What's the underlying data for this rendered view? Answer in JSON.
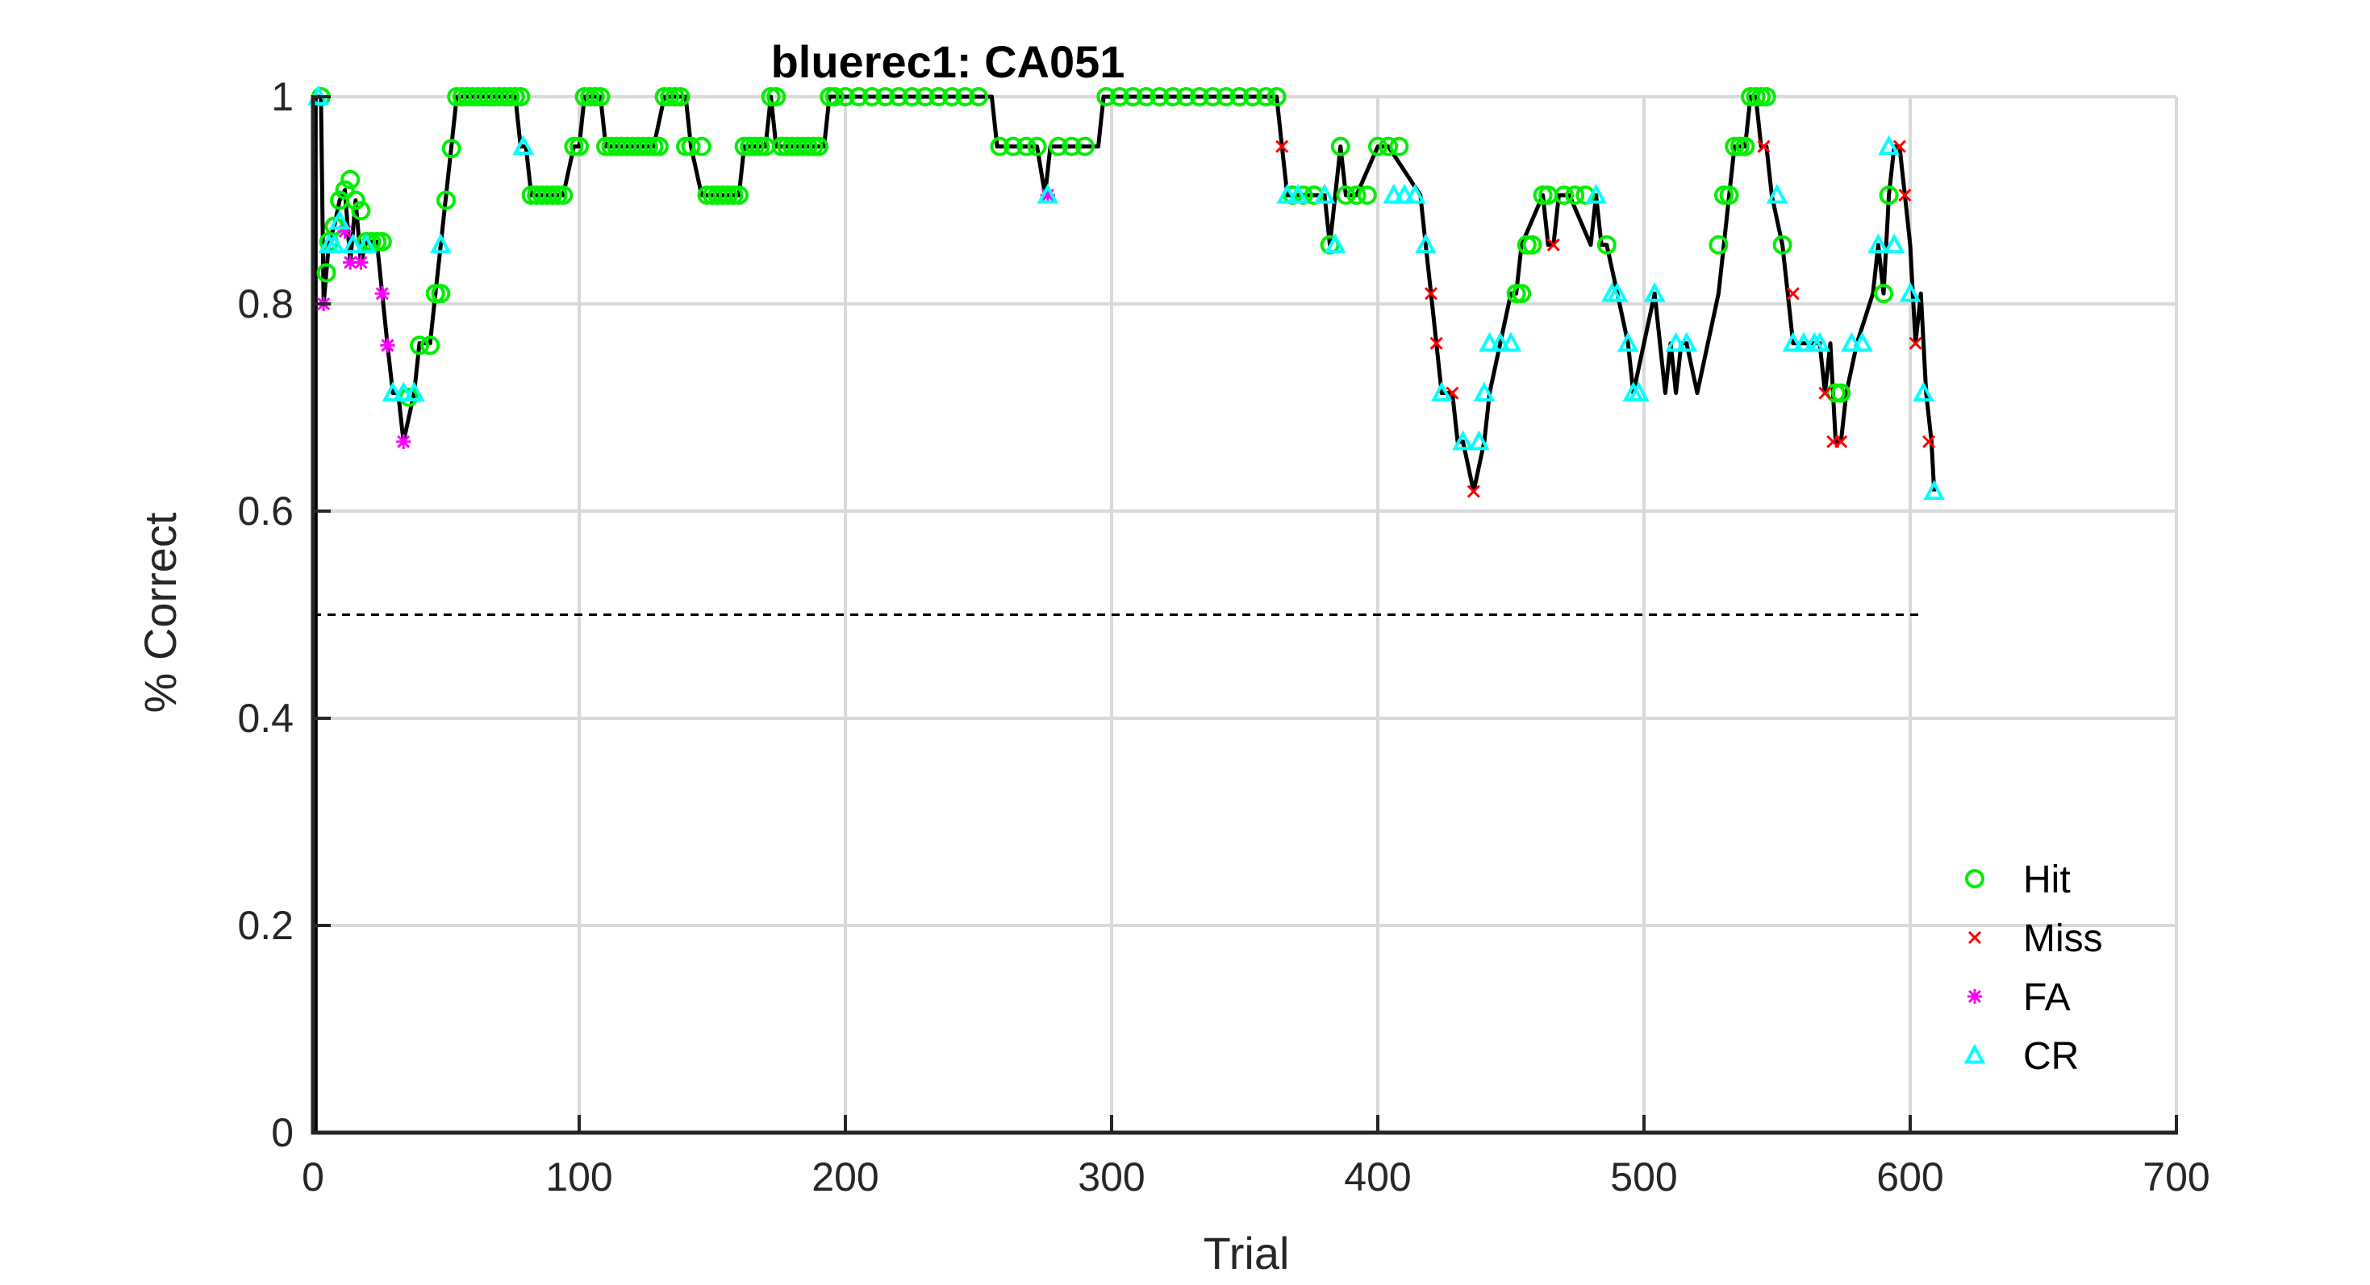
{
  "chart_data": {
    "type": "line",
    "title": "bluerec1: CA051",
    "xlabel": "Trial",
    "ylabel": "% Correct",
    "xlim": [
      0,
      700
    ],
    "ylim": [
      0,
      1
    ],
    "xticks": [
      0,
      100,
      200,
      300,
      400,
      500,
      600,
      700
    ],
    "yticks": [
      0,
      0.2,
      0.4,
      0.6,
      0.8,
      1
    ],
    "xtick_labels": [
      "0",
      "100",
      "200",
      "300",
      "400",
      "500",
      "600",
      "700"
    ],
    "ytick_labels": [
      "0",
      "0.2",
      "0.4",
      "0.6",
      "0.8",
      "1"
    ],
    "grid": true,
    "legend_position": "bottom-right",
    "chance_line": {
      "y": 0.5,
      "x": [
        0,
        605
      ],
      "style": "dashed"
    },
    "line_color": "#000000",
    "series_styles": {
      "Hit": {
        "color": "#00ee00",
        "marker": "circle"
      },
      "Miss": {
        "color": "#ff0000",
        "marker": "x"
      },
      "FA": {
        "color": "#ff00ff",
        "marker": "asterisk"
      },
      "CR": {
        "color": "#00ffff",
        "marker": "triangle"
      }
    },
    "legend": [
      {
        "label": "Hit",
        "marker": "circle",
        "color": "#00ee00"
      },
      {
        "label": "Miss",
        "marker": "x",
        "color": "#ff0000"
      },
      {
        "label": "FA",
        "marker": "asterisk",
        "color": "#ff00ff"
      },
      {
        "label": "CR",
        "marker": "triangle",
        "color": "#00ffff"
      }
    ],
    "series": [
      {
        "name": "Hit",
        "x": [
          3,
          5,
          6,
          8,
          10,
          12,
          14,
          16,
          18,
          20,
          22,
          24,
          26,
          36,
          40,
          44,
          46,
          48,
          50,
          52,
          54,
          56,
          58,
          60,
          62,
          64,
          66,
          68,
          70,
          72,
          74,
          76,
          78,
          82,
          84,
          86,
          88,
          90,
          92,
          94,
          98,
          100,
          102,
          104,
          106,
          108,
          110,
          112,
          114,
          116,
          118,
          120,
          122,
          124,
          126,
          128,
          130,
          132,
          134,
          136,
          138,
          140,
          142,
          146,
          148,
          150,
          152,
          154,
          156,
          158,
          160,
          162,
          164,
          166,
          168,
          170,
          172,
          174,
          176,
          178,
          180,
          182,
          184,
          186,
          188,
          190,
          194,
          196,
          200,
          205,
          210,
          215,
          220,
          225,
          230,
          235,
          240,
          245,
          250,
          258,
          263,
          268,
          272,
          280,
          285,
          290,
          298,
          303,
          308,
          313,
          318,
          323,
          328,
          333,
          338,
          343,
          348,
          353,
          358,
          362,
          368,
          372,
          376,
          382,
          386,
          388,
          392,
          396,
          400,
          404,
          408,
          452,
          454,
          456,
          458,
          462,
          464,
          470,
          474,
          478,
          486,
          528,
          530,
          532,
          534,
          536,
          538,
          540,
          542,
          544,
          546,
          552,
          572,
          574,
          590,
          592
        ],
        "y": [
          1,
          0.83,
          0.86,
          0.875,
          0.9,
          0.91,
          0.92,
          0.9,
          0.89,
          0.86,
          0.86,
          0.86,
          0.86,
          0.71,
          0.76,
          0.76,
          0.81,
          0.81,
          0.9,
          0.95,
          1,
          1,
          1,
          1,
          1,
          1,
          1,
          1,
          1,
          1,
          1,
          1,
          1,
          0.905,
          0.905,
          0.905,
          0.905,
          0.905,
          0.905,
          0.905,
          0.952,
          0.952,
          1,
          1,
          1,
          1,
          0.952,
          0.952,
          0.952,
          0.952,
          0.952,
          0.952,
          0.952,
          0.952,
          0.952,
          0.952,
          0.952,
          1,
          1,
          1,
          1,
          0.952,
          0.952,
          0.952,
          0.905,
          0.905,
          0.905,
          0.905,
          0.905,
          0.905,
          0.905,
          0.952,
          0.952,
          0.952,
          0.952,
          0.952,
          1,
          1,
          0.952,
          0.952,
          0.952,
          0.952,
          0.952,
          0.952,
          0.952,
          0.952,
          1,
          1,
          1,
          1,
          1,
          1,
          1,
          1,
          1,
          1,
          1,
          1,
          1,
          0.952,
          0.952,
          0.952,
          0.952,
          0.952,
          0.952,
          0.952,
          1,
          1,
          1,
          1,
          1,
          1,
          1,
          1,
          1,
          1,
          1,
          1,
          1,
          1,
          0.905,
          0.905,
          0.905,
          0.857,
          0.952,
          0.905,
          0.905,
          0.905,
          0.952,
          0.952,
          0.952,
          0.81,
          0.81,
          0.857,
          0.857,
          0.905,
          0.905,
          0.905,
          0.905,
          0.905,
          0.857,
          0.857,
          0.905,
          0.905,
          0.952,
          0.952,
          0.952,
          1,
          1,
          1,
          1,
          0.857,
          0.714,
          0.714,
          0.81,
          0.905
        ]
      },
      {
        "name": "Miss",
        "x": [
          364,
          420,
          422,
          428,
          436,
          466,
          545,
          556,
          568,
          571,
          574,
          596,
          598,
          602,
          607
        ],
        "y": [
          0.952,
          0.81,
          0.762,
          0.714,
          0.619,
          0.857,
          0.952,
          0.81,
          0.714,
          0.667,
          0.667,
          0.952,
          0.905,
          0.762,
          0.667
        ]
      },
      {
        "name": "FA",
        "x": [
          4,
          12,
          14,
          18,
          26,
          28,
          34,
          276
        ],
        "y": [
          0.8,
          0.87,
          0.84,
          0.84,
          0.81,
          0.76,
          0.667,
          0.905
        ]
      },
      {
        "name": "CR",
        "x": [
          2,
          6,
          8,
          10,
          15,
          20,
          30,
          34,
          38,
          48,
          79,
          276,
          366,
          370,
          380,
          384,
          406,
          410,
          414,
          418,
          424,
          432,
          438,
          440,
          442,
          446,
          450,
          482,
          488,
          490,
          494,
          496,
          498,
          504,
          512,
          516,
          550,
          556,
          560,
          564,
          566,
          578,
          582,
          588,
          592,
          594,
          600,
          605,
          609
        ],
        "y": [
          1,
          0.857,
          0.857,
          0.88,
          0.857,
          0.857,
          0.714,
          0.714,
          0.714,
          0.857,
          0.952,
          0.905,
          0.905,
          0.905,
          0.905,
          0.857,
          0.905,
          0.905,
          0.905,
          0.857,
          0.714,
          0.667,
          0.667,
          0.714,
          0.762,
          0.762,
          0.762,
          0.905,
          0.81,
          0.81,
          0.762,
          0.714,
          0.714,
          0.81,
          0.762,
          0.762,
          0.905,
          0.762,
          0.762,
          0.762,
          0.762,
          0.762,
          0.762,
          0.857,
          0.952,
          0.857,
          0.81,
          0.714,
          0.619
        ]
      }
    ],
    "performance": {
      "x": [
        1,
        3,
        4,
        5,
        6,
        8,
        10,
        12,
        14,
        16,
        18,
        20,
        24,
        26,
        28,
        30,
        32,
        34,
        38,
        40,
        44,
        46,
        48,
        50,
        52,
        54,
        60,
        70,
        76,
        78,
        80,
        82,
        94,
        98,
        100,
        102,
        108,
        110,
        128,
        132,
        140,
        142,
        146,
        160,
        162,
        170,
        172,
        174,
        176,
        192,
        194,
        255,
        257,
        272,
        275,
        277,
        280,
        295,
        297,
        362,
        364,
        366,
        380,
        382,
        386,
        388,
        392,
        400,
        404,
        416,
        418,
        420,
        422,
        424,
        428,
        430,
        432,
        436,
        440,
        442,
        446,
        450,
        452,
        454,
        462,
        464,
        466,
        468,
        472,
        480,
        482,
        484,
        486,
        490,
        494,
        496,
        500,
        504,
        506,
        508,
        510,
        512,
        514,
        516,
        520,
        524,
        528,
        530,
        532,
        534,
        538,
        540,
        542,
        544,
        546,
        548,
        552,
        554,
        556,
        558,
        562,
        566,
        568,
        570,
        572,
        574,
        576,
        580,
        586,
        588,
        590,
        592,
        594,
        596,
        598,
        600,
        602,
        604,
        606,
        608,
        609
      ],
      "y": [
        1,
        1,
        0.8,
        0.83,
        0.86,
        0.875,
        0.9,
        0.91,
        0.84,
        0.9,
        0.84,
        0.86,
        0.86,
        0.81,
        0.76,
        0.714,
        0.714,
        0.667,
        0.714,
        0.762,
        0.762,
        0.81,
        0.857,
        0.905,
        0.952,
        1,
        1,
        1,
        1,
        0.952,
        0.952,
        0.905,
        0.905,
        0.952,
        0.952,
        1,
        1,
        0.952,
        0.952,
        1,
        1,
        0.952,
        0.905,
        0.905,
        0.952,
        0.952,
        1,
        0.952,
        0.952,
        0.952,
        1,
        1,
        0.952,
        0.952,
        0.905,
        0.952,
        0.952,
        0.952,
        1,
        1,
        0.952,
        0.905,
        0.905,
        0.857,
        0.952,
        0.905,
        0.905,
        0.952,
        0.952,
        0.905,
        0.857,
        0.81,
        0.762,
        0.714,
        0.714,
        0.667,
        0.667,
        0.619,
        0.667,
        0.714,
        0.762,
        0.81,
        0.81,
        0.857,
        0.905,
        0.857,
        0.857,
        0.905,
        0.905,
        0.857,
        0.905,
        0.857,
        0.857,
        0.81,
        0.762,
        0.714,
        0.762,
        0.81,
        0.762,
        0.714,
        0.762,
        0.714,
        0.762,
        0.762,
        0.714,
        0.762,
        0.81,
        0.857,
        0.905,
        0.952,
        0.952,
        1,
        1,
        0.952,
        0.952,
        0.905,
        0.857,
        0.81,
        0.762,
        0.762,
        0.762,
        0.762,
        0.714,
        0.762,
        0.667,
        0.667,
        0.714,
        0.762,
        0.81,
        0.857,
        0.81,
        0.905,
        0.952,
        0.952,
        0.905,
        0.857,
        0.762,
        0.81,
        0.714,
        0.667,
        0.619
      ]
    }
  }
}
